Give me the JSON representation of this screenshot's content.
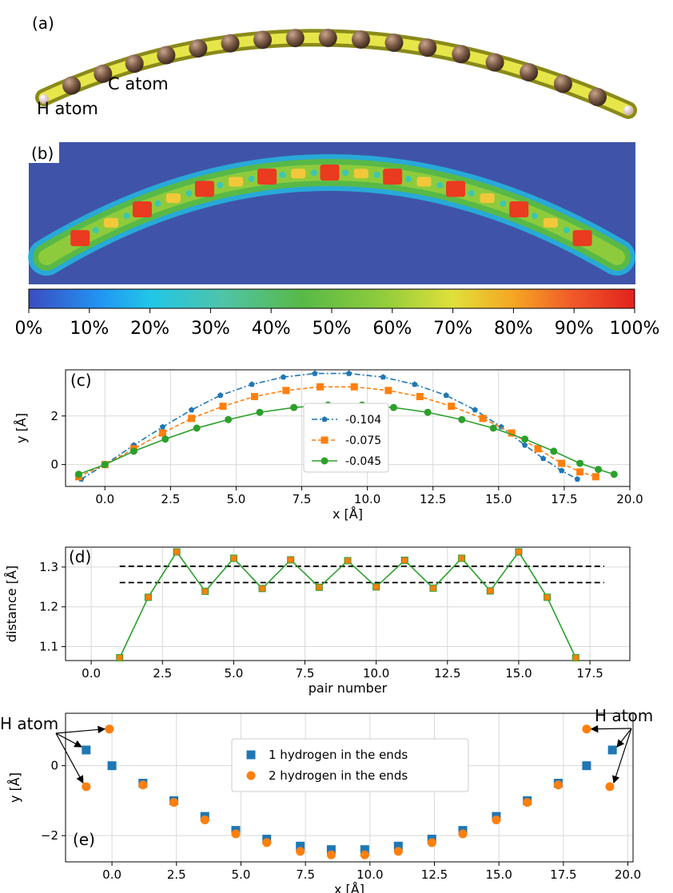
{
  "panel_a": {
    "tag": "(a)",
    "c_label": "C atom",
    "h_label": "H atom"
  },
  "panel_b": {
    "tag": "(b)",
    "colorbar_ticks": [
      "0%",
      "10%",
      "20%",
      "30%",
      "40%",
      "50%",
      "60%",
      "70%",
      "80%",
      "90%",
      "100%"
    ]
  },
  "chart_data": [
    {
      "id": "c",
      "type": "line",
      "tag": "(c)",
      "xlabel": "x [Å]",
      "ylabel": "y [Å]",
      "xlim": [
        -1.5,
        20.0
      ],
      "ylim": [
        -0.9,
        3.9
      ],
      "xticks": [
        "0.0",
        "2.5",
        "5.0",
        "7.5",
        "10.0",
        "12.5",
        "15.0",
        "17.5",
        "20.0"
      ],
      "yticks": [
        "0",
        "2"
      ],
      "grid": true,
      "legend_position": "center",
      "series": [
        {
          "name": "-0.104",
          "color": "#1f77b4",
          "marker": "pentagon",
          "dash": "7,3,2,3",
          "x": [
            -0.9,
            0,
            1.1,
            2.2,
            3.3,
            4.4,
            5.6,
            6.8,
            8.0,
            9.3,
            10.6,
            11.8,
            13.0,
            14.1,
            15.1,
            16.0,
            16.7,
            17.4,
            18.0
          ],
          "y": [
            -0.6,
            0,
            0.8,
            1.55,
            2.25,
            2.85,
            3.3,
            3.6,
            3.75,
            3.75,
            3.6,
            3.3,
            2.85,
            2.25,
            1.55,
            0.8,
            0.25,
            -0.25,
            -0.6
          ]
        },
        {
          "name": "-0.075",
          "color": "#ff7f0e",
          "marker": "square",
          "dash": "5,3",
          "x": [
            -1.0,
            0,
            1.1,
            2.2,
            3.3,
            4.5,
            5.7,
            6.9,
            8.2,
            9.5,
            10.8,
            12.0,
            13.2,
            14.4,
            15.5,
            16.5,
            17.4,
            18.1,
            18.7
          ],
          "y": [
            -0.5,
            0,
            0.65,
            1.3,
            1.9,
            2.4,
            2.8,
            3.05,
            3.2,
            3.2,
            3.05,
            2.8,
            2.4,
            1.9,
            1.3,
            0.65,
            0.05,
            -0.3,
            -0.5
          ]
        },
        {
          "name": "-0.045",
          "color": "#2ca02c",
          "marker": "circle",
          "dash": "",
          "x": [
            -1.0,
            0,
            1.1,
            2.3,
            3.5,
            4.7,
            5.9,
            7.2,
            8.5,
            9.8,
            11.0,
            12.3,
            13.6,
            14.8,
            16.0,
            17.1,
            18.1,
            18.8,
            19.4
          ],
          "y": [
            -0.4,
            0,
            0.55,
            1.05,
            1.5,
            1.85,
            2.15,
            2.35,
            2.45,
            2.45,
            2.35,
            2.15,
            1.85,
            1.5,
            1.05,
            0.55,
            0.05,
            -0.2,
            -0.4
          ]
        }
      ]
    },
    {
      "id": "d",
      "type": "line",
      "tag": "(d)",
      "xlabel": "pair number",
      "ylabel": "distance [Å]",
      "xlim": [
        -0.9,
        18.9
      ],
      "ylim": [
        1.065,
        1.35
      ],
      "xticks": [
        "0.0",
        "2.5",
        "5.0",
        "7.5",
        "10.0",
        "12.5",
        "15.0",
        "17.5"
      ],
      "yticks": [
        "1.1",
        "1.2",
        "1.3"
      ],
      "grid": true,
      "reference_lines": [
        1.302,
        1.261
      ],
      "series": [
        {
          "color": "#2ca02c",
          "marker_color": "#ff7f0e",
          "x": [
            1,
            2,
            3,
            4,
            5,
            6,
            7,
            8,
            9,
            10,
            11,
            12,
            13,
            14,
            15,
            16,
            17
          ],
          "y": [
            1.072,
            1.224,
            1.338,
            1.239,
            1.322,
            1.246,
            1.318,
            1.249,
            1.316,
            1.25,
            1.317,
            1.247,
            1.322,
            1.24,
            1.338,
            1.224,
            1.072
          ]
        }
      ]
    },
    {
      "id": "e",
      "type": "scatter",
      "tag": "(e)",
      "xlabel": "x [Å]",
      "ylabel": "y [Å]",
      "xlim": [
        -1.8,
        20.2
      ],
      "ylim": [
        -2.75,
        1.5
      ],
      "xticks": [
        "0.0",
        "2.5",
        "5.0",
        "7.5",
        "10.0",
        "12.5",
        "15.0",
        "17.5",
        "20.0"
      ],
      "yticks": [
        "0",
        "−2"
      ],
      "grid": true,
      "legend_position": "top-center",
      "annotations": [
        "H atom",
        "H atom"
      ],
      "series": [
        {
          "name": "1 hydrogen in the ends",
          "color": "#1f77b4",
          "marker": "square",
          "x": [
            -1.0,
            0,
            1.2,
            2.4,
            3.6,
            4.8,
            6.0,
            7.3,
            8.5,
            9.8,
            11.1,
            12.4,
            13.6,
            14.9,
            16.1,
            17.3,
            18.4,
            19.4
          ],
          "y": [
            0.45,
            0,
            -0.5,
            -1.0,
            -1.45,
            -1.85,
            -2.1,
            -2.3,
            -2.4,
            -2.4,
            -2.3,
            -2.1,
            -1.85,
            -1.45,
            -1.0,
            -0.5,
            0,
            0.45
          ]
        },
        {
          "name": "2 hydrogen in the ends",
          "color": "#ff7f0e",
          "marker": "circle",
          "x": [
            -1.0,
            -0.1,
            1.2,
            2.4,
            3.6,
            4.8,
            6.0,
            7.3,
            8.5,
            9.8,
            11.1,
            12.4,
            13.6,
            14.9,
            16.1,
            17.3,
            18.4,
            19.3
          ],
          "y": [
            -0.6,
            1.05,
            -0.55,
            -1.05,
            -1.55,
            -1.95,
            -2.2,
            -2.45,
            -2.55,
            -2.55,
            -2.45,
            -2.2,
            -1.95,
            -1.55,
            -1.05,
            -0.55,
            1.05,
            -0.6
          ]
        }
      ]
    }
  ]
}
